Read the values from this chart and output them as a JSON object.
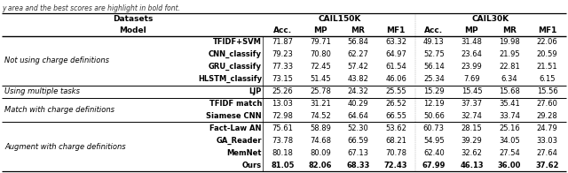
{
  "sub_headers": [
    "Acc.",
    "MP",
    "MR",
    "MF1",
    "Acc.",
    "MP",
    "MR",
    "MF1"
  ],
  "groups": [
    {
      "group_label": "Not using charge definitions",
      "rows": [
        {
          "model": "TFIDF+SVM",
          "vals": [
            "71.87",
            "79.71",
            "56.84",
            "63.32",
            "49.13",
            "31.48",
            "19.98",
            "22.06"
          ],
          "bold": false
        },
        {
          "model": "CNN_classify",
          "vals": [
            "79.23",
            "70.80",
            "62.27",
            "64.97",
            "52.75",
            "23.64",
            "21.95",
            "20.59"
          ],
          "bold": false
        },
        {
          "model": "GRU_classify",
          "vals": [
            "77.33",
            "72.45",
            "57.42",
            "61.54",
            "56.14",
            "23.99",
            "22.81",
            "21.51"
          ],
          "bold": false
        },
        {
          "model": "HLSTM_classify",
          "vals": [
            "73.15",
            "51.45",
            "43.82",
            "46.06",
            "25.34",
            "7.69",
            "6.34",
            "6.15"
          ],
          "bold": false
        }
      ]
    },
    {
      "group_label": "Using multiple tasks",
      "rows": [
        {
          "model": "LJP",
          "vals": [
            "25.26",
            "25.78",
            "24.32",
            "25.55",
            "15.29",
            "15.45",
            "15.68",
            "15.56"
          ],
          "bold": false
        }
      ]
    },
    {
      "group_label": "Match with charge definitions",
      "rows": [
        {
          "model": "TFIDF match",
          "vals": [
            "13.03",
            "31.21",
            "40.29",
            "26.52",
            "12.19",
            "37.37",
            "35.41",
            "27.60"
          ],
          "bold": false
        },
        {
          "model": "Siamese CNN",
          "vals": [
            "72.98",
            "74.52",
            "64.64",
            "66.55",
            "50.66",
            "32.74",
            "33.74",
            "29.28"
          ],
          "bold": false
        }
      ]
    },
    {
      "group_label": "Augment with charge definitions",
      "rows": [
        {
          "model": "Fact-Law AN",
          "vals": [
            "75.61",
            "58.89",
            "52.30",
            "53.62",
            "60.73",
            "28.15",
            "25.16",
            "24.79"
          ],
          "bold": false
        },
        {
          "model": "GA_Reader",
          "vals": [
            "73.78",
            "74.68",
            "66.59",
            "68.21",
            "54.95",
            "39.29",
            "34.05",
            "33.03"
          ],
          "bold": false
        },
        {
          "model": "MemNet",
          "vals": [
            "80.18",
            "80.09",
            "67.13",
            "70.78",
            "62.40",
            "32.62",
            "27.54",
            "27.64"
          ],
          "bold": false
        },
        {
          "model": "Ours",
          "vals": [
            "81.05",
            "82.06",
            "68.33",
            "72.43",
            "67.99",
            "46.13",
            "36.00",
            "37.62"
          ],
          "bold": true
        }
      ]
    }
  ],
  "bg_color": "#ffffff",
  "line_color": "#000000",
  "text_color": "#000000",
  "top_note": "y area and the best scores are highlight in bold font.",
  "figw": 6.4,
  "figh": 1.96,
  "dpi": 100
}
